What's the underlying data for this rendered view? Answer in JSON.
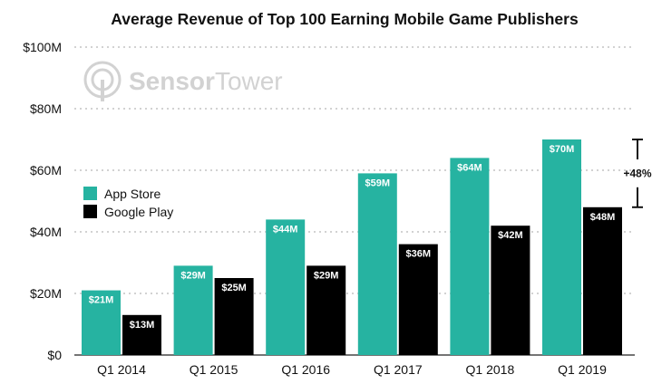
{
  "chart_data": {
    "type": "bar",
    "title": "Average Revenue of Top 100 Earning Mobile Game Publishers",
    "categories": [
      "Q1 2014",
      "Q1 2015",
      "Q1 2016",
      "Q1 2017",
      "Q1 2018",
      "Q1 2019"
    ],
    "series": [
      {
        "name": "App Store",
        "values": [
          21,
          29,
          44,
          59,
          64,
          70
        ],
        "labels": [
          "$21M",
          "$29M",
          "$44M",
          "$59M",
          "$64M",
          "$70M"
        ],
        "color": "#26b3a1"
      },
      {
        "name": "Google Play",
        "values": [
          13,
          25,
          29,
          36,
          42,
          48
        ],
        "labels": [
          "$13M",
          "$25M",
          "$29M",
          "$36M",
          "$42M",
          "$48M"
        ],
        "color": "#000000"
      }
    ],
    "ylim": [
      0,
      100
    ],
    "yticks": [
      0,
      20,
      40,
      60,
      80,
      100
    ],
    "ytick_labels": [
      "$0",
      "$20M",
      "$40M",
      "$60M",
      "$80M",
      "$100M"
    ],
    "grid": true,
    "legend_position": "left",
    "annotation": {
      "text": "+48%",
      "category": "Q1 2019"
    }
  },
  "watermark": {
    "brand_bold": "Sensor",
    "brand_light": "Tower"
  }
}
